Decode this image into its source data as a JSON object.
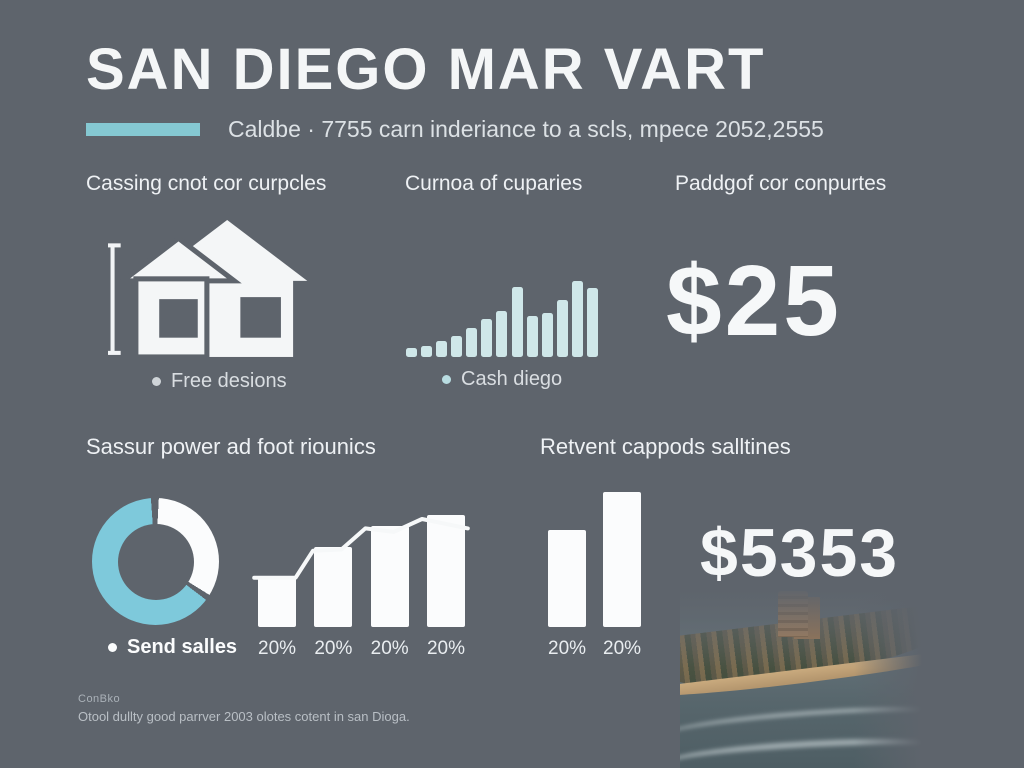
{
  "colors": {
    "background": "#5e646c",
    "accent_teal": "#85c8d2",
    "pale_teal_bars": "#cfe7e9",
    "donut_teal": "#7ec9db",
    "white_bars": "#fbfcfd",
    "title_white": "#f4f6f7"
  },
  "header": {
    "title": "SAN DIEGO MAR VART",
    "subtitle": "Caldbe · 7755 carn inderiance to a scls, mpece 2052,2555"
  },
  "sections": {
    "housing": {
      "title": "Cassing cnot cor curpcles",
      "caption": "Free desions"
    },
    "cash": {
      "title": "Curnoa of cuparies",
      "caption": "Cash diego"
    },
    "price": {
      "title": "Paddgof cor conpurtes",
      "value": "$25"
    },
    "sales": {
      "title": "Sassur power ad foot riounics",
      "caption": "Send salles"
    },
    "recent": {
      "title": "Retvent cappods salltines",
      "value": "$5353"
    }
  },
  "footer": {
    "line1": "ConBko",
    "line2": "Otool dullty good parrver 2003 olotes cotent in san Dioga."
  },
  "chart_data": [
    {
      "id": "cash-bars",
      "type": "bar",
      "title": "Curnoa of cuparies",
      "caption": "Cash diego",
      "values": [
        9,
        11,
        16,
        20,
        28,
        37,
        45,
        68,
        40,
        43,
        56,
        74,
        67
      ],
      "ymax": 74,
      "color": "#cfe7e9",
      "grid": false
    },
    {
      "id": "sales-donut",
      "type": "pie",
      "title": "Sassur power ad foot riounics",
      "caption": "Send salles",
      "start_deg": 3,
      "segments": [
        {
          "label": "sales-white",
          "value": 33,
          "color": "#fbfcfd"
        },
        {
          "label": "gap",
          "value": 1.5,
          "color": "#5e646c"
        },
        {
          "label": "sales-teal",
          "value": 63.5,
          "color": "#7ec9db"
        },
        {
          "label": "gap",
          "value": 2,
          "color": "#5e646c"
        }
      ]
    },
    {
      "id": "growth-bars-line",
      "type": "bar+line",
      "labels": [
        "20%",
        "20%",
        "20%",
        "20%"
      ],
      "values": [
        43,
        68,
        86,
        95
      ],
      "ymax": 115,
      "bar_color": "#fbfcfd",
      "line_color": "#f6f8f9",
      "line_points": [
        [
          1,
          42
        ],
        [
          20,
          42
        ],
        [
          28,
          65
        ],
        [
          41,
          66
        ],
        [
          52,
          84
        ],
        [
          65,
          81
        ],
        [
          78,
          92
        ],
        [
          99,
          84
        ]
      ]
    },
    {
      "id": "recent-bars",
      "type": "bar",
      "title": "Retvent cappods salltines",
      "labels": [
        "20%",
        "20%"
      ],
      "values": [
        83,
        115
      ],
      "ymax": 115,
      "color": "#fbfcfd",
      "grid": false
    }
  ]
}
